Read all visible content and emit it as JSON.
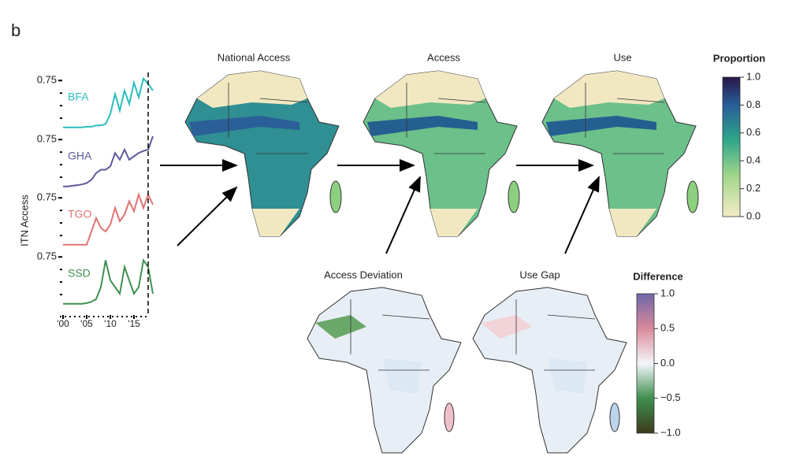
{
  "panel_label": "b",
  "sparklines": {
    "y_label": "ITN Access",
    "ylim": [
      0,
      0.8
    ],
    "x": [
      2000,
      2001,
      2002,
      2003,
      2004,
      2005,
      2006,
      2007,
      2008,
      2009,
      2010,
      2011,
      2012,
      2013,
      2014,
      2015,
      2016,
      2017,
      2018,
      2019
    ],
    "xticks": [
      {
        "value": 2000,
        "label": "'00"
      },
      {
        "value": 2005,
        "label": "'05"
      },
      {
        "value": 2010,
        "label": "'10"
      },
      {
        "value": 2015,
        "label": "'15"
      }
    ],
    "reference_x": 2018,
    "series": [
      {
        "name": "BFA",
        "color": "#2bbdbd",
        "ytick": 0.75,
        "values": [
          0.05,
          0.05,
          0.05,
          0.05,
          0.05,
          0.06,
          0.06,
          0.08,
          0.08,
          0.1,
          0.25,
          0.55,
          0.3,
          0.6,
          0.4,
          0.72,
          0.5,
          0.78,
          0.7,
          0.6
        ]
      },
      {
        "name": "GHA",
        "color": "#5d5a9c",
        "ytick": 0.75,
        "values": [
          0.05,
          0.05,
          0.06,
          0.07,
          0.08,
          0.1,
          0.15,
          0.25,
          0.3,
          0.3,
          0.35,
          0.55,
          0.45,
          0.6,
          0.45,
          0.5,
          0.55,
          0.58,
          0.6,
          0.8
        ]
      },
      {
        "name": "TGO",
        "color": "#e07272",
        "ytick": 0.75,
        "values": [
          0.05,
          0.05,
          0.05,
          0.05,
          0.05,
          0.05,
          0.25,
          0.45,
          0.3,
          0.25,
          0.35,
          0.6,
          0.4,
          0.5,
          0.7,
          0.55,
          0.8,
          0.6,
          0.8,
          0.65
        ]
      },
      {
        "name": "SSD",
        "color": "#3f8f4f",
        "ytick": 0.75,
        "values": [
          0.05,
          0.05,
          0.05,
          0.05,
          0.05,
          0.06,
          0.08,
          0.12,
          0.3,
          0.7,
          0.4,
          0.3,
          0.2,
          0.6,
          0.4,
          0.2,
          0.3,
          0.7,
          0.6,
          0.2
        ]
      }
    ]
  },
  "maps": [
    {
      "title": "National Access"
    },
    {
      "title": "Access"
    },
    {
      "title": "Use"
    },
    {
      "title": "Access Deviation"
    },
    {
      "title": "Use Gap"
    }
  ],
  "legends": {
    "proportion": {
      "title": "Proportion",
      "ticks": [
        {
          "value": 0,
          "label": "0.0"
        },
        0.2,
        0.4,
        0.6,
        0.8,
        {
          "value": 1,
          "label": "1.0"
        }
      ]
    },
    "difference": {
      "title": "Difference",
      "ticks": [
        {
          "value": 1,
          "label": "1.0"
        },
        0.5,
        {
          "value": 0,
          "label": "0.0"
        },
        {
          "value": -0.5,
          "label": "−0.5"
        },
        {
          "value": -1,
          "label": "−1.0"
        }
      ]
    }
  }
}
